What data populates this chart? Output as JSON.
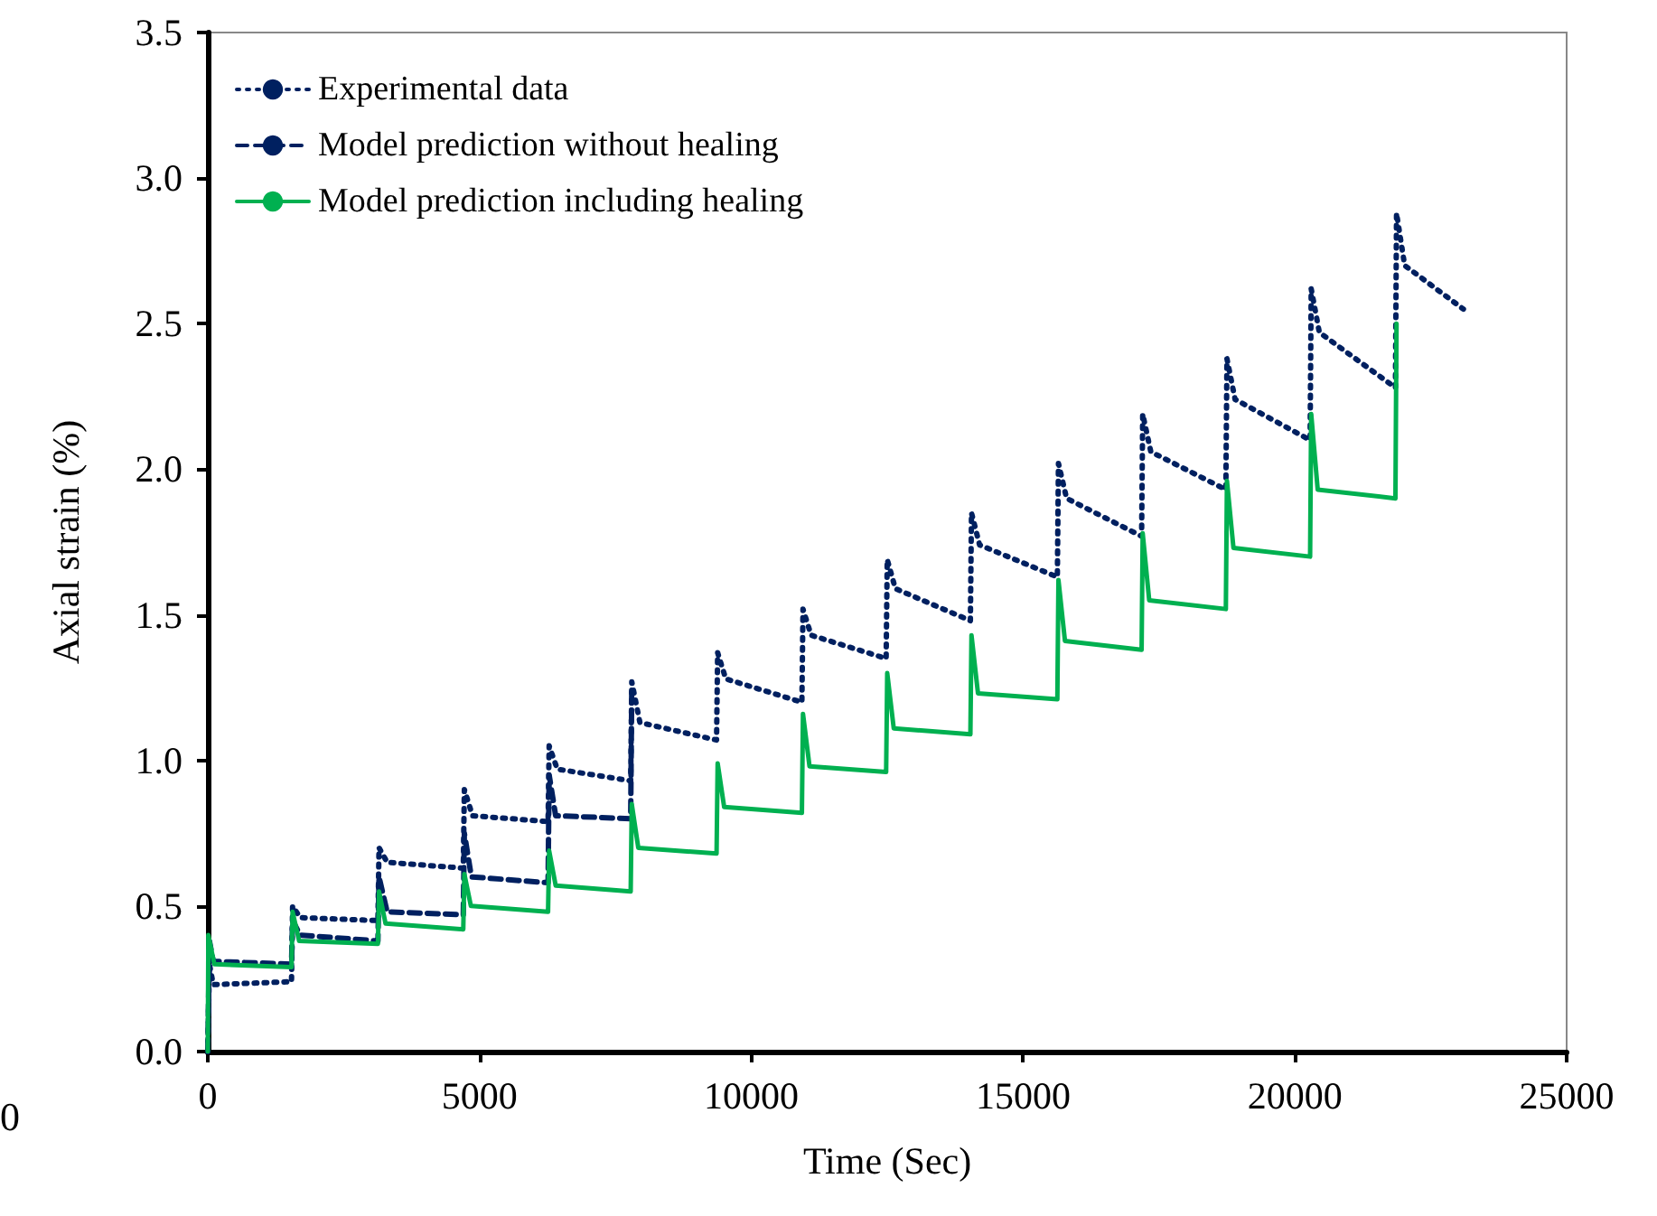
{
  "chart_data": {
    "type": "line",
    "xlabel": "Time (Sec)",
    "ylabel": "Axial strain (%)",
    "xlim": [
      0,
      25000
    ],
    "xticks": [
      0,
      5000,
      10000,
      15000,
      20000,
      25000
    ],
    "ylim": [
      0,
      3.5
    ],
    "yticks": [
      {
        "value": 0,
        "label": "0.0"
      },
      {
        "value": 0.5,
        "label": "0.5"
      },
      {
        "value": 1,
        "label": "1.0"
      },
      {
        "value": 1.5,
        "label": "1.5"
      },
      {
        "value": 2,
        "label": "2.0"
      },
      {
        "value": 2.5,
        "label": "2.5"
      },
      {
        "value": 3,
        "label": "3.0"
      },
      {
        "value": 3.5,
        "label": "3.5"
      }
    ],
    "grid": false,
    "legend": "top left",
    "marker": "none",
    "annotations": [
      "0"
    ],
    "series": [
      {
        "name": "Experimental data",
        "color": "#002060",
        "line_style": "dotted",
        "x": [
          0,
          30,
          100,
          1540,
          1560,
          1700,
          3130,
          3150,
          3300,
          4700,
          4720,
          4870,
          6260,
          6280,
          6430,
          7780,
          7800,
          7950,
          9360,
          9380,
          9530,
          10930,
          10950,
          11100,
          12480,
          12500,
          12650,
          14030,
          14050,
          14200,
          15630,
          15650,
          15800,
          17180,
          17200,
          17350,
          18730,
          18750,
          18900,
          20280,
          20300,
          20450,
          21850,
          21870,
          22020,
          23100
        ],
        "values": [
          0,
          0.3,
          0.23,
          0.24,
          0.5,
          0.46,
          0.45,
          0.7,
          0.65,
          0.63,
          0.9,
          0.81,
          0.79,
          1.05,
          0.97,
          0.93,
          1.27,
          1.13,
          1.07,
          1.37,
          1.28,
          1.2,
          1.52,
          1.43,
          1.35,
          1.69,
          1.59,
          1.48,
          1.85,
          1.74,
          1.63,
          2.02,
          1.9,
          1.77,
          2.19,
          2.06,
          1.93,
          2.38,
          2.24,
          2.1,
          2.62,
          2.47,
          2.28,
          2.88,
          2.7,
          2.55
        ]
      },
      {
        "name": "Model prediction without healing",
        "color": "#002060",
        "line_style": "dashed",
        "x": [
          0,
          30,
          100,
          1540,
          1560,
          1700,
          3130,
          3150,
          3300,
          4700,
          4720,
          4850,
          6260,
          6280,
          6400,
          7780,
          7800
        ],
        "values": [
          0,
          0.38,
          0.31,
          0.3,
          0.45,
          0.4,
          0.38,
          0.6,
          0.48,
          0.47,
          0.75,
          0.6,
          0.58,
          0.95,
          0.81,
          0.8,
          1.25
        ]
      },
      {
        "name": "Model prediction including healing",
        "color": "#00b050",
        "line_style": "solid",
        "x": [
          0,
          10,
          120,
          1540,
          1560,
          1680,
          3130,
          3150,
          3270,
          4700,
          4720,
          4840,
          6260,
          6280,
          6400,
          7780,
          7800,
          7920,
          9360,
          9380,
          9500,
          10930,
          10950,
          11070,
          12480,
          12500,
          12620,
          14030,
          14050,
          14170,
          15630,
          15650,
          15770,
          17180,
          17200,
          17320,
          18730,
          18750,
          18870,
          20280,
          20300,
          20420,
          21850,
          21870
        ],
        "values": [
          0,
          0.4,
          0.3,
          0.29,
          0.48,
          0.38,
          0.37,
          0.55,
          0.44,
          0.42,
          0.61,
          0.5,
          0.48,
          0.69,
          0.57,
          0.55,
          0.85,
          0.7,
          0.68,
          0.99,
          0.84,
          0.82,
          1.16,
          0.98,
          0.96,
          1.3,
          1.11,
          1.09,
          1.43,
          1.23,
          1.21,
          1.62,
          1.41,
          1.38,
          1.78,
          1.55,
          1.52,
          1.96,
          1.73,
          1.7,
          2.19,
          1.93,
          1.9,
          2.5
        ]
      }
    ]
  }
}
